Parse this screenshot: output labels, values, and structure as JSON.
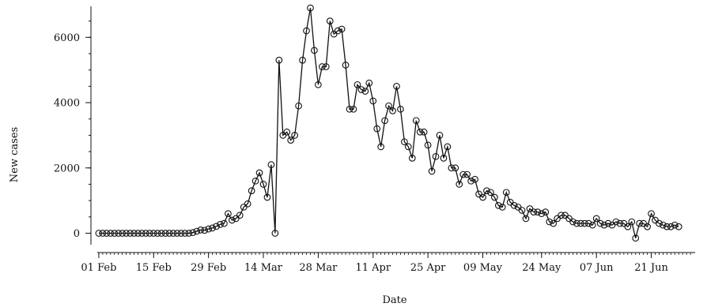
{
  "chart_data": {
    "type": "line",
    "xlabel": "Date",
    "ylabel": "New cases",
    "xlim": [
      "2020-01-30",
      "2020-07-03"
    ],
    "ylim": [
      -350,
      6950
    ],
    "x_ticks": [
      {
        "label": "01 Feb",
        "date": "2020-02-01"
      },
      {
        "label": "15 Feb",
        "date": "2020-02-15"
      },
      {
        "label": "29 Feb",
        "date": "2020-02-29"
      },
      {
        "label": "14 Mar",
        "date": "2020-03-14"
      },
      {
        "label": "28 Mar",
        "date": "2020-03-28"
      },
      {
        "label": "11 Apr",
        "date": "2020-04-11"
      },
      {
        "label": "25 Apr",
        "date": "2020-04-25"
      },
      {
        "label": "09 May",
        "date": "2020-05-09"
      },
      {
        "label": "24 May",
        "date": "2020-05-24"
      },
      {
        "label": "07 Jun",
        "date": "2020-06-07"
      },
      {
        "label": "21 Jun",
        "date": "2020-06-21"
      }
    ],
    "y_ticks": [
      {
        "label": "0",
        "value": 0
      },
      {
        "label": "2000",
        "value": 2000
      },
      {
        "label": "4000",
        "value": 4000
      },
      {
        "label": "6000",
        "value": 6000
      }
    ],
    "grid": false,
    "marker": "open-circle",
    "series": [
      {
        "first_date": "2020-02-01",
        "values": [
          0,
          0,
          0,
          0,
          0,
          0,
          0,
          0,
          0,
          0,
          0,
          0,
          0,
          0,
          0,
          0,
          0,
          0,
          0,
          0,
          0,
          0,
          0,
          0,
          20,
          60,
          100,
          90,
          130,
          160,
          210,
          270,
          300,
          600,
          400,
          450,
          550,
          800,
          900,
          1300,
          1600,
          1850,
          1500,
          1100,
          2100,
          0,
          5300,
          3000,
          3100,
          2850,
          3000,
          3900,
          5300,
          6200,
          6900,
          5600,
          4550,
          5100,
          5100,
          6500,
          6100,
          6200,
          6250,
          5150,
          3800,
          3800,
          4550,
          4400,
          4350,
          4600,
          4050,
          3200,
          2650,
          3450,
          3900,
          3750,
          4500,
          3800,
          2800,
          2650,
          2300,
          3450,
          3100,
          3100,
          2700,
          1900,
          2350,
          3000,
          2300,
          2650,
          2000,
          2000,
          1500,
          1800,
          1800,
          1600,
          1650,
          1200,
          1100,
          1300,
          1250,
          1100,
          850,
          800,
          1250,
          950,
          850,
          800,
          700,
          450,
          750,
          650,
          650,
          600,
          650,
          350,
          300,
          450,
          550,
          550,
          450,
          350,
          300,
          300,
          300,
          300,
          250,
          450,
          300,
          250,
          300,
          250,
          350,
          300,
          300,
          200,
          350,
          -150,
          300,
          300,
          200,
          600,
          400,
          300,
          250,
          200,
          200,
          250,
          200
        ]
      }
    ]
  }
}
